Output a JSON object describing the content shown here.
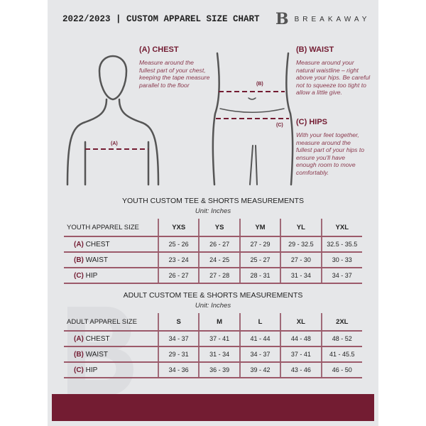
{
  "header": {
    "title": "2022/2023  |  CUSTOM APPAREL SIZE CHART",
    "brand": "BREAKAWAY",
    "logo_letter": "B"
  },
  "guide": {
    "chest": {
      "title": "(A) CHEST",
      "text": "Measure around the fullest part of your chest, keeping the tape measure parallel to the floor",
      "tag": "(A)"
    },
    "waist": {
      "title": "(B) WAIST",
      "text": "Measure around your natural waistline – right above your hips. Be careful not to squeeze too tight to allow a little give.",
      "tag": "(B)"
    },
    "hips": {
      "title": "(C) HIPS",
      "text": "With your feet together, measure around the fullest part of your hips to ensure you'll have enough room to move comfortably.",
      "tag": "(C)"
    }
  },
  "youth": {
    "title": "YOUTH CUSTOM TEE & SHORTS MEASUREMENTS",
    "unit": "Unit: Inches",
    "header": [
      "YOUTH APPAREL SIZE",
      "YXS",
      "YS",
      "YM",
      "YL",
      "YXL"
    ],
    "rows": [
      {
        "letter": "(A)",
        "label": "CHEST",
        "values": [
          "25 - 26",
          "26 - 27",
          "27 - 29",
          "29 - 32.5",
          "32.5 - 35.5"
        ]
      },
      {
        "letter": "(B)",
        "label": "WAIST",
        "values": [
          "23 - 24",
          "24 - 25",
          "25 - 27",
          "27 - 30",
          "30 - 33"
        ]
      },
      {
        "letter": "(C)",
        "label": "HIP",
        "values": [
          "26 - 27",
          "27 - 28",
          "28 - 31",
          "31 - 34",
          "34 - 37"
        ]
      }
    ]
  },
  "adult": {
    "title": "ADULT CUSTOM TEE & SHORTS MEASUREMENTS",
    "unit": "Unit: Inches",
    "header": [
      "ADULT APPAREL SIZE",
      "S",
      "M",
      "L",
      "XL",
      "2XL"
    ],
    "rows": [
      {
        "letter": "(A)",
        "label": "CHEST",
        "values": [
          "34 - 37",
          "37 - 41",
          "41 - 44",
          "44 - 48",
          "48 - 52"
        ]
      },
      {
        "letter": "(B)",
        "label": "WAIST",
        "values": [
          "29 - 31",
          "31 - 34",
          "34 - 37",
          "37 - 41",
          "41 - 45.5"
        ]
      },
      {
        "letter": "(C)",
        "label": "HIP",
        "values": [
          "34 - 36",
          "36 - 39",
          "39 - 42",
          "43 - 46",
          "46 - 50"
        ]
      }
    ]
  },
  "colors": {
    "accent": "#731c32",
    "background": "#e6e7e9"
  }
}
